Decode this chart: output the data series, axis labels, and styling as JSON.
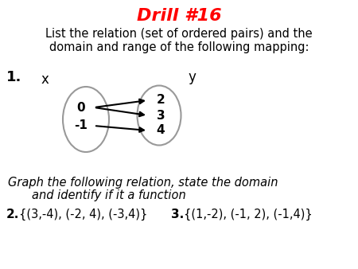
{
  "title": "Drill #16",
  "title_color": "#FF0000",
  "subtitle_line1": "List the relation (set of ordered pairs) and the",
  "subtitle_line2": "domain and range of the following mapping:",
  "item1_label": "1.",
  "x_label": "x",
  "y_label": "y",
  "domain_values": [
    "0",
    "-1"
  ],
  "range_values": [
    "2",
    "3",
    "4"
  ],
  "arrow_connections": [
    [
      "0",
      "2"
    ],
    [
      "0",
      "3"
    ],
    [
      "-1",
      "4"
    ]
  ],
  "graph_text_line1": "Graph the following relation, state the domain",
  "graph_text_line2": "and identify if it a function",
  "item2_label": "2.",
  "item2_text": "{(3,-4), (-2, 4), (-3,4)}",
  "item3_label": "3.",
  "item3_text": "{(1,-2), (-1, 2), (-1,4)}",
  "bg_color": "#FFFFFF"
}
